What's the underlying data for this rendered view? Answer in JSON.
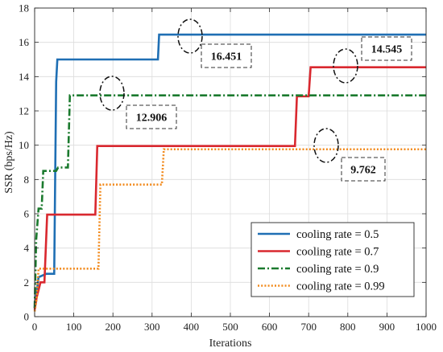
{
  "chart_data": {
    "type": "line",
    "xlabel": "Iterations",
    "ylabel": "SSR (bps/Hz)",
    "xlim": [
      0,
      1000
    ],
    "ylim": [
      0,
      18
    ],
    "xticks": [
      0,
      100,
      200,
      300,
      400,
      500,
      600,
      700,
      800,
      900,
      1000
    ],
    "yticks": [
      0,
      2,
      4,
      6,
      8,
      10,
      12,
      14,
      16,
      18
    ],
    "grid": true,
    "legend_position": "bottom-right",
    "series": [
      {
        "name": "cooling rate = 0.5",
        "color": "#1f6fb4",
        "dash": "solid",
        "x": [
          0,
          10,
          30,
          50,
          55,
          58,
          315,
          318,
          1000
        ],
        "y": [
          0.5,
          2.3,
          2.5,
          2.5,
          13.7,
          15.0,
          15.0,
          16.451,
          16.451
        ]
      },
      {
        "name": "cooling rate = 0.7",
        "color": "#d9282f",
        "dash": "solid",
        "x": [
          0,
          5,
          15,
          25,
          32,
          155,
          160,
          665,
          670,
          700,
          705,
          1000
        ],
        "y": [
          0.4,
          1.1,
          2.0,
          2.0,
          5.95,
          5.95,
          9.95,
          9.95,
          12.85,
          12.85,
          14.545,
          14.545
        ]
      },
      {
        "name": "cooling rate = 0.9",
        "color": "#1b7a2e",
        "dash": "dashdot",
        "x": [
          0,
          4,
          10,
          18,
          22,
          55,
          60,
          85,
          90,
          1000
        ],
        "y": [
          0.5,
          4.5,
          6.3,
          6.3,
          8.5,
          8.5,
          8.7,
          8.7,
          12.906,
          12.906
        ]
      },
      {
        "name": "cooling rate = 0.99",
        "color": "#f28a1c",
        "dash": "dotted",
        "x": [
          0,
          5,
          10,
          163,
          168,
          325,
          330,
          1000
        ],
        "y": [
          0.3,
          1.0,
          2.8,
          2.8,
          7.7,
          7.7,
          9.762,
          9.762
        ]
      }
    ],
    "annotations": [
      {
        "text": "16.451",
        "x": 400,
        "y": 16.451
      },
      {
        "text": "14.545",
        "x": 800,
        "y": 14.545
      },
      {
        "text": "12.906",
        "x": 200,
        "y": 12.906
      },
      {
        "text": "9.762",
        "x": 760,
        "y": 9.762
      }
    ]
  }
}
